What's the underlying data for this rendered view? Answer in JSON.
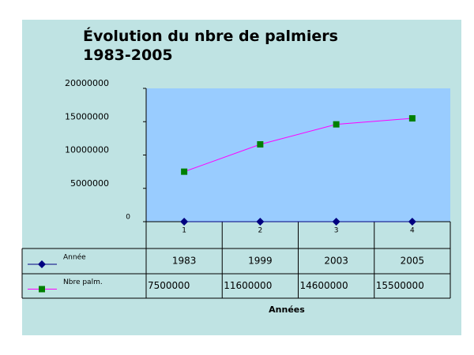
{
  "chart_data": {
    "type": "line",
    "title": "Évolution du nbre de palmiers 1983-2005",
    "x_label": "Années",
    "categories": [
      "1",
      "2",
      "3",
      "4"
    ],
    "series": [
      {
        "name": "Année",
        "color": "#000080",
        "marker": "diamond",
        "values": [
          1983,
          1999,
          2003,
          2005
        ]
      },
      {
        "name": "Nbre palm.",
        "color": "#ff00ff",
        "marker_color": "#008000",
        "marker": "square",
        "values": [
          7500000,
          11600000,
          14600000,
          15500000
        ]
      }
    ],
    "ylim": [
      0,
      20000000
    ],
    "yticks": [
      0,
      5000000,
      10000000,
      15000000,
      20000000
    ],
    "data_table": true
  }
}
